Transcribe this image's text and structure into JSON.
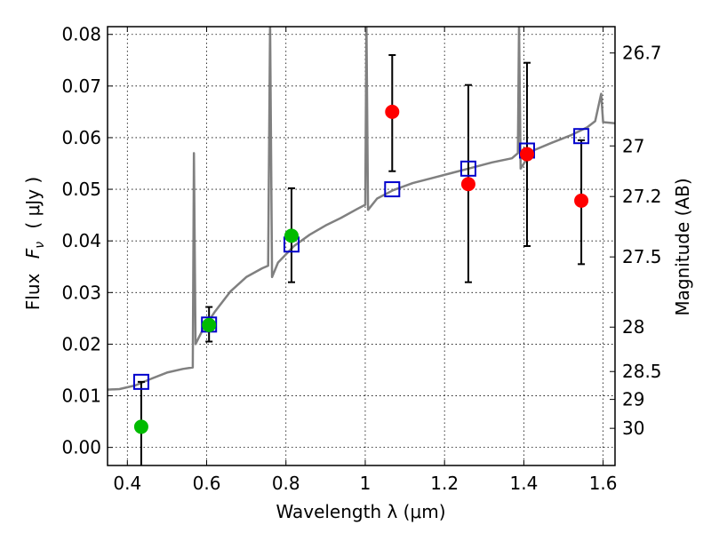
{
  "chart_data": {
    "type": "scatter",
    "xlabel": "Wavelength  λ (μm)",
    "ylabel_prefix": "Flux",
    "ylabel_symbol": "F",
    "ylabel_subscript": "ν",
    "ylabel_unit": "( μJy )",
    "y2label": "Magnitude (AB)",
    "xlim": [
      0.35,
      1.63
    ],
    "ylim": [
      -0.0035,
      0.0815
    ],
    "grid": true,
    "grid_style": "dotted",
    "xticks": [
      0.4,
      0.6,
      0.8,
      1.0,
      1.2,
      1.4,
      1.6
    ],
    "xtick_labels": [
      "0.4",
      "0.6",
      "0.8",
      "1",
      "1.2",
      "1.4",
      "1.6"
    ],
    "yticks": [
      0.0,
      0.01,
      0.02,
      0.03,
      0.04,
      0.05,
      0.06,
      0.07,
      0.08
    ],
    "ytick_labels": [
      "0.00",
      "0.01",
      "0.02",
      "0.03",
      "0.04",
      "0.05",
      "0.06",
      "0.07",
      "0.08"
    ],
    "magnitude_ticks": [
      {
        "label": "26.7",
        "flux": 0.0764
      },
      {
        "label": "27",
        "flux": 0.0584
      },
      {
        "label": "27.2",
        "flux": 0.0486
      },
      {
        "label": "27.5",
        "flux": 0.0369
      },
      {
        "label": "28",
        "flux": 0.0233
      },
      {
        "label": "28.5",
        "flux": 0.0147
      },
      {
        "label": "29",
        "flux": 0.0093
      },
      {
        "label": "30",
        "flux": 0.0037
      }
    ],
    "colors": {
      "sed": "#808080",
      "detected": "#00bb00",
      "observed": "#ff0000",
      "model": "#0000cc",
      "errorbar": "#000000"
    },
    "sed_spectrum": [
      [
        0.35,
        0.0112
      ],
      [
        0.38,
        0.0113
      ],
      [
        0.42,
        0.012
      ],
      [
        0.46,
        0.0133
      ],
      [
        0.5,
        0.0145
      ],
      [
        0.54,
        0.0152
      ],
      [
        0.565,
        0.0155
      ],
      [
        0.568,
        0.057
      ],
      [
        0.572,
        0.02
      ],
      [
        0.59,
        0.0228
      ],
      [
        0.62,
        0.0262
      ],
      [
        0.66,
        0.0302
      ],
      [
        0.7,
        0.033
      ],
      [
        0.74,
        0.0347
      ],
      [
        0.755,
        0.0352
      ],
      [
        0.76,
        0.082
      ],
      [
        0.765,
        0.033
      ],
      [
        0.78,
        0.0358
      ],
      [
        0.82,
        0.039
      ],
      [
        0.86,
        0.0412
      ],
      [
        0.9,
        0.043
      ],
      [
        0.94,
        0.0445
      ],
      [
        0.98,
        0.0462
      ],
      [
        1.0,
        0.047
      ],
      [
        1.003,
        0.082
      ],
      [
        1.007,
        0.046
      ],
      [
        1.03,
        0.0482
      ],
      [
        1.07,
        0.0498
      ],
      [
        1.12,
        0.0512
      ],
      [
        1.17,
        0.0522
      ],
      [
        1.22,
        0.0532
      ],
      [
        1.27,
        0.0542
      ],
      [
        1.32,
        0.0552
      ],
      [
        1.37,
        0.056
      ],
      [
        1.385,
        0.057
      ],
      [
        1.388,
        0.082
      ],
      [
        1.392,
        0.054
      ],
      [
        1.42,
        0.0574
      ],
      [
        1.47,
        0.059
      ],
      [
        1.52,
        0.0605
      ],
      [
        1.56,
        0.062
      ],
      [
        1.58,
        0.0632
      ],
      [
        1.595,
        0.0685
      ],
      [
        1.6,
        0.063
      ],
      [
        1.63,
        0.0628
      ]
    ],
    "detected_points": [
      {
        "x": 0.435,
        "y": 0.004
      },
      {
        "x": 0.606,
        "y": 0.0237,
        "err_low": 0.0205,
        "err_high": 0.0272
      },
      {
        "x": 0.814,
        "y": 0.041,
        "err_low": 0.032,
        "err_high": 0.0502
      }
    ],
    "observed_points": [
      {
        "x": 1.068,
        "y": 0.065,
        "err_low": 0.0535,
        "err_high": 0.076
      },
      {
        "x": 1.26,
        "y": 0.051,
        "err_low": 0.032,
        "err_high": 0.0702
      },
      {
        "x": 1.408,
        "y": 0.0568,
        "err_low": 0.039,
        "err_high": 0.0745
      },
      {
        "x": 1.545,
        "y": 0.0478,
        "err_low": 0.0355,
        "err_high": 0.0595
      }
    ],
    "upper_limit_errorbar": {
      "x": 0.435,
      "err_low": -0.0035,
      "err_high": 0.0127
    },
    "model_points": [
      {
        "x": 0.435,
        "y": 0.0127
      },
      {
        "x": 0.606,
        "y": 0.0238
      },
      {
        "x": 0.814,
        "y": 0.0393
      },
      {
        "x": 1.068,
        "y": 0.05
      },
      {
        "x": 1.26,
        "y": 0.054
      },
      {
        "x": 1.408,
        "y": 0.0575
      },
      {
        "x": 1.545,
        "y": 0.0603
      }
    ]
  }
}
